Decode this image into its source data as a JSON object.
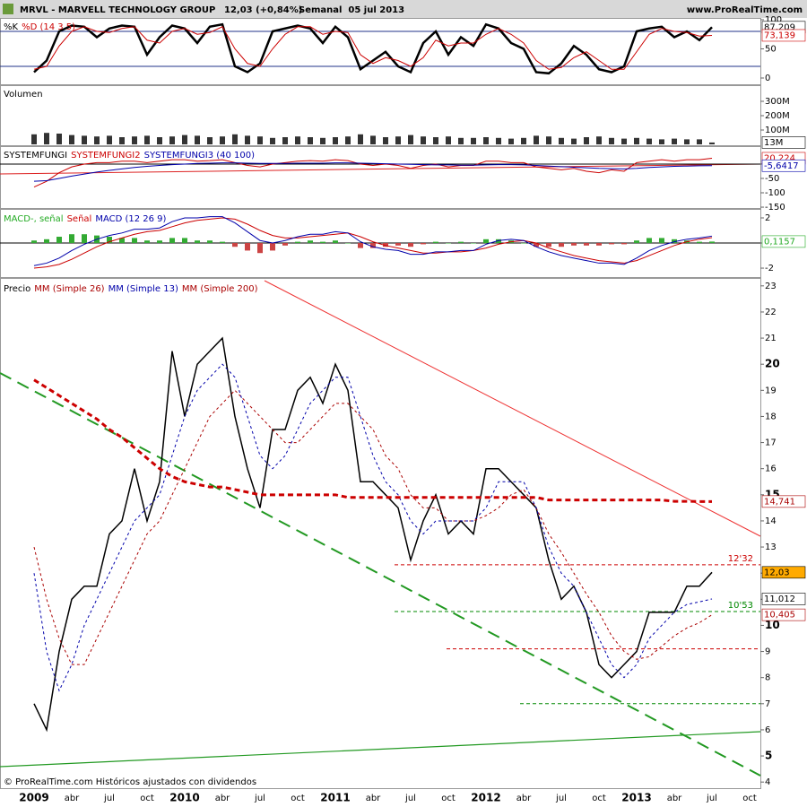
{
  "header": {
    "symbol": "MRVL - MARVELL TECHNOLOGY GROUP",
    "quote": "12,03 (+0,84%)",
    "period": "Semanal  05 jul 2013",
    "site": "www.ProRealTime.com"
  },
  "footer": "© ProRealTime.com Históricos ajustados con dividendos",
  "chart_data": [
    {
      "type": "line",
      "legend": [
        {
          "text": "%K",
          "color": "#000000"
        },
        {
          "text": "%D (14 3 5)",
          "color": "#cc0000"
        }
      ],
      "ylim": [
        0,
        100
      ],
      "yticks": [
        0,
        50,
        100
      ],
      "ref_lines": [
        80,
        20
      ],
      "series": [
        {
          "color": "#000000",
          "width": 2.5,
          "values": [
            10,
            30,
            80,
            90,
            88,
            70,
            85,
            90,
            88,
            40,
            70,
            90,
            85,
            60,
            88,
            92,
            20,
            10,
            25,
            80,
            85,
            90,
            85,
            60,
            88,
            70,
            15,
            30,
            45,
            20,
            10,
            60,
            80,
            40,
            70,
            55,
            92,
            85,
            60,
            50,
            10,
            8,
            25,
            55,
            40,
            15,
            10,
            20,
            80,
            85,
            88,
            70,
            80,
            65,
            87.209,
            null,
            null,
            null
          ]
        },
        {
          "color": "#cc0000",
          "width": 1,
          "values": [
            15,
            20,
            55,
            80,
            88,
            80,
            78,
            85,
            88,
            65,
            60,
            80,
            85,
            75,
            78,
            88,
            50,
            25,
            20,
            50,
            75,
            88,
            88,
            75,
            80,
            78,
            40,
            25,
            35,
            30,
            20,
            35,
            65,
            55,
            60,
            60,
            75,
            85,
            75,
            60,
            30,
            15,
            18,
            35,
            45,
            30,
            15,
            15,
            45,
            75,
            85,
            80,
            78,
            72,
            73.139,
            null,
            null,
            null
          ]
        }
      ],
      "last_labels": [
        {
          "value": 87.209,
          "label": "87,209",
          "color": "#000000"
        },
        {
          "value": 73.139,
          "label": "73,139",
          "color": "#cc0000"
        }
      ]
    },
    {
      "type": "bar",
      "legend": [
        {
          "text": "Volumen",
          "color": "#000000"
        }
      ],
      "ylim": [
        0,
        400
      ],
      "yticks": [
        {
          "value": 100,
          "label": "100M"
        },
        {
          "value": 200,
          "label": "200M"
        },
        {
          "value": 300,
          "label": "300M"
        }
      ],
      "series": [
        {
          "kind": "bar",
          "color": "#333333",
          "values": [
            70,
            80,
            75,
            65,
            60,
            55,
            60,
            50,
            55,
            60,
            50,
            55,
            65,
            60,
            50,
            55,
            70,
            60,
            55,
            45,
            50,
            55,
            50,
            45,
            50,
            55,
            70,
            60,
            50,
            55,
            65,
            55,
            50,
            55,
            45,
            45,
            50,
            45,
            40,
            45,
            60,
            55,
            45,
            40,
            50,
            55,
            45,
            40,
            45,
            40,
            35,
            40,
            35,
            35,
            13,
            null,
            null,
            null
          ]
        }
      ],
      "last_labels": [
        {
          "value": 13,
          "label": "13M",
          "color": "#000000"
        }
      ]
    },
    {
      "type": "line",
      "legend": [
        {
          "text": "SYSTEMFUNGI",
          "color": "#000000"
        },
        {
          "text": "SYSTEMFUNGI2",
          "color": "#cc0000"
        },
        {
          "text": "SYSTEMFUNGI3 (40 100)",
          "color": "#0000aa"
        }
      ],
      "ylim": [
        -153,
        56
      ],
      "yticks": [
        -150,
        -100,
        -50,
        0
      ],
      "ref_lines": [
        0
      ],
      "series": [
        {
          "color": "#cc0000",
          "width": 1,
          "values": [
            -80,
            -60,
            -30,
            -10,
            0,
            5,
            5,
            10,
            10,
            5,
            10,
            15,
            15,
            10,
            12,
            15,
            5,
            -5,
            -10,
            0,
            5,
            10,
            12,
            10,
            15,
            12,
            0,
            -5,
            0,
            -5,
            -15,
            -5,
            0,
            -10,
            -5,
            -5,
            10,
            10,
            5,
            5,
            -10,
            -15,
            -20,
            -15,
            -25,
            -30,
            -20,
            -25,
            5,
            10,
            15,
            10,
            15,
            15,
            20.224,
            null,
            null,
            null
          ]
        },
        {
          "color": "#0000aa",
          "width": 1,
          "values": [
            -60,
            -58,
            -50,
            -42,
            -35,
            -28,
            -22,
            -17,
            -12,
            -8,
            -5,
            -2,
            0,
            2,
            3,
            4,
            4,
            3,
            2,
            2,
            2,
            3,
            3,
            3,
            4,
            4,
            3,
            2,
            1,
            0,
            -1,
            -2,
            -3,
            -3,
            -4,
            -4,
            -3,
            -2,
            -2,
            -3,
            -5,
            -7,
            -9,
            -11,
            -13,
            -15,
            -16,
            -17,
            -15,
            -12,
            -10,
            -8,
            -7,
            -6,
            -5.6417,
            null,
            null,
            null
          ]
        }
      ],
      "last_labels": [
        {
          "value": 20.224,
          "label": "20,224",
          "color": "#cc0000"
        },
        {
          "value": -5.6417,
          "label": "-5,6417",
          "color": "#0000aa"
        }
      ]
    },
    {
      "type": "line",
      "legend": [
        {
          "text": "MACD-, señal",
          "color": "#22aa22"
        },
        {
          "text": "Señal",
          "color": "#cc0000"
        },
        {
          "text": "MACD (12 26 9)",
          "color": "#0000aa"
        }
      ],
      "ylim": [
        -2.64,
        2.5
      ],
      "yticks": [
        -2,
        0,
        2
      ],
      "ref_lines": [
        0
      ],
      "series": [
        {
          "kind": "bar",
          "color": "#33aa33",
          "negative_color": "#cc4444",
          "values": [
            0.2,
            0.3,
            0.5,
            0.7,
            0.7,
            0.6,
            0.5,
            0.4,
            0.4,
            0.2,
            0.2,
            0.4,
            0.4,
            0.2,
            0.2,
            0.1,
            -0.3,
            -0.6,
            -0.8,
            -0.6,
            -0.2,
            0.1,
            0.2,
            0.1,
            0.2,
            0,
            -0.4,
            -0.4,
            -0.3,
            -0.2,
            -0.3,
            -0.1,
            0.1,
            0,
            0.1,
            0,
            0.3,
            0.3,
            0.2,
            0,
            -0.3,
            -0.3,
            -0.3,
            -0.2,
            -0.2,
            -0.2,
            -0.1,
            -0.1,
            0.2,
            0.4,
            0.4,
            0.3,
            0.2,
            0.1,
            0.1157,
            null,
            null,
            null
          ]
        },
        {
          "color": "#cc0000",
          "width": 1,
          "values": [
            -2,
            -1.9,
            -1.7,
            -1.3,
            -0.8,
            -0.3,
            0.1,
            0.4,
            0.7,
            0.9,
            1,
            1.3,
            1.6,
            1.8,
            1.9,
            2,
            1.9,
            1.5,
            1,
            0.6,
            0.4,
            0.4,
            0.5,
            0.6,
            0.7,
            0.8,
            0.5,
            0.1,
            -0.2,
            -0.4,
            -0.6,
            -0.8,
            -0.8,
            -0.7,
            -0.7,
            -0.6,
            -0.4,
            -0.1,
            0.1,
            0.2,
            0,
            -0.4,
            -0.7,
            -1,
            -1.2,
            -1.4,
            -1.5,
            -1.6,
            -1.4,
            -1,
            -0.6,
            -0.2,
            0.1,
            0.3,
            0.43,
            null,
            null,
            null
          ]
        },
        {
          "color": "#0000aa",
          "width": 1,
          "values": [
            -1.8,
            -1.6,
            -1.2,
            -0.6,
            -0.1,
            0.3,
            0.6,
            0.8,
            1.1,
            1.1,
            1.2,
            1.7,
            2,
            2,
            2.1,
            2.1,
            1.6,
            0.9,
            0.2,
            0,
            0.2,
            0.5,
            0.7,
            0.7,
            0.9,
            0.8,
            0.1,
            -0.3,
            -0.5,
            -0.6,
            -0.9,
            -0.9,
            -0.7,
            -0.7,
            -0.6,
            -0.6,
            -0.1,
            0.2,
            0.3,
            0.2,
            -0.3,
            -0.7,
            -1,
            -1.2,
            -1.4,
            -1.6,
            -1.6,
            -1.7,
            -1.2,
            -0.6,
            -0.2,
            0.1,
            0.3,
            0.4,
            0.55,
            null,
            null,
            null
          ]
        }
      ],
      "last_labels": [
        {
          "value": 0.1157,
          "label": "0,1157",
          "color": "#22aa22"
        }
      ]
    },
    {
      "type": "line",
      "legend": [
        {
          "text": "Precio",
          "color": "#000000"
        },
        {
          "text": "MM (Simple 26)",
          "color": "#aa0000"
        },
        {
          "text": "MM (Simple 13)",
          "color": "#0000aa"
        },
        {
          "text": "MM (Simple 200)",
          "color": "#aa0000"
        }
      ],
      "categories": [
        "2009",
        null,
        null,
        "abr",
        null,
        null,
        "jul",
        null,
        null,
        "oct",
        null,
        null,
        "2010",
        null,
        null,
        "abr",
        null,
        null,
        "jul",
        null,
        null,
        "oct",
        null,
        null,
        "2011",
        null,
        null,
        "abr",
        null,
        null,
        "jul",
        null,
        null,
        "oct",
        null,
        null,
        "2012",
        null,
        null,
        "abr",
        null,
        null,
        "jul",
        null,
        null,
        "oct",
        null,
        null,
        "2013",
        null,
        null,
        "abr",
        null,
        null,
        "jul",
        null,
        null,
        "oct"
      ],
      "ylim": [
        3.8,
        23.2
      ],
      "yticks": [
        4,
        5,
        6,
        7,
        8,
        9,
        10,
        11,
        12,
        13,
        14,
        15,
        16,
        17,
        18,
        19,
        20,
        21,
        22,
        23
      ],
      "series": [
        {
          "color": "#000000",
          "width": 1.5,
          "values": [
            7,
            6,
            9,
            11,
            11.5,
            11.5,
            13.5,
            14,
            16,
            14,
            15.5,
            20.5,
            18,
            20,
            20.5,
            21,
            18,
            16,
            14.5,
            17.5,
            17.5,
            19,
            19.5,
            18.5,
            20,
            19,
            15.5,
            15.5,
            15,
            14.5,
            12.5,
            14,
            15,
            13.5,
            14,
            13.5,
            16,
            16,
            15.5,
            15,
            14.5,
            12.5,
            11,
            11.5,
            10.5,
            8.5,
            8,
            8.5,
            9,
            10.5,
            10.5,
            10.5,
            11.5,
            11.5,
            12.03,
            null,
            null,
            null
          ]
        },
        {
          "color": "#aa0000",
          "width": 1,
          "dash": "3,3",
          "values": [
            13,
            11,
            9.5,
            8.5,
            8.5,
            9.5,
            10.5,
            11.5,
            12.5,
            13.5,
            14,
            15,
            16,
            17,
            18,
            18.5,
            19,
            18.5,
            18,
            17.5,
            17,
            17,
            17.5,
            18,
            18.5,
            18.5,
            18,
            17.5,
            16.5,
            16,
            15,
            14.5,
            14.5,
            14,
            14,
            14,
            14.2,
            14.5,
            15,
            15.2,
            14.5,
            13.5,
            12.8,
            12,
            11.2,
            10.5,
            9.6,
            9,
            8.7,
            8.8,
            9.2,
            9.6,
            9.9,
            10.1,
            10.405,
            null,
            null,
            null
          ]
        },
        {
          "color": "#0000aa",
          "width": 1,
          "dash": "3,3",
          "values": [
            12,
            9,
            7.5,
            8.5,
            10,
            11,
            12,
            13,
            14,
            14.5,
            15,
            16.5,
            18,
            19,
            19.5,
            20,
            19.5,
            18,
            16.5,
            16,
            16.5,
            17.5,
            18.5,
            19,
            19.5,
            19.5,
            18,
            16.5,
            15.5,
            15,
            14,
            13.5,
            14,
            14,
            14,
            14,
            14.5,
            15.5,
            15.5,
            15.5,
            14.5,
            13,
            12,
            11.5,
            10.5,
            9.5,
            8.5,
            8,
            8.5,
            9.5,
            10,
            10.5,
            10.8,
            10.9,
            11.012,
            null,
            null,
            null
          ]
        },
        {
          "color": "#cc0000",
          "width": 3,
          "dash": "6,4",
          "values": [
            19.4,
            19.1,
            18.8,
            18.5,
            18.2,
            17.9,
            17.5,
            17.2,
            16.8,
            16.4,
            16,
            15.7,
            15.5,
            15.4,
            15.3,
            15.3,
            15.2,
            15.1,
            15,
            15,
            15,
            15,
            15,
            15,
            15,
            14.9,
            14.9,
            14.9,
            14.9,
            14.9,
            14.9,
            14.9,
            14.9,
            14.9,
            14.9,
            14.9,
            14.9,
            14.9,
            14.9,
            14.9,
            14.9,
            14.8,
            14.8,
            14.8,
            14.8,
            14.8,
            14.8,
            14.8,
            14.8,
            14.8,
            14.8,
            14.75,
            14.75,
            14.74,
            14.741,
            null,
            null,
            null
          ]
        }
      ],
      "levels": [
        {
          "value": 12.32,
          "label": "12'32",
          "color": "#cc0000"
        },
        {
          "value": 10.53,
          "label": "10'53",
          "color": "#008800"
        },
        {
          "value": 9.1,
          "color": "#cc0000"
        },
        {
          "value": 7,
          "color": "#008800"
        }
      ],
      "last_labels": [
        {
          "value": 14.741,
          "label": "14,741",
          "color": "#aa0000"
        },
        {
          "value": 12.03,
          "label": "12,03",
          "color": "#000000",
          "bg": "#ffaa00"
        },
        {
          "value": 11.012,
          "label": "11,012",
          "color": "#000000"
        },
        {
          "value": 10.405,
          "label": "10,405",
          "color": "#aa0000"
        }
      ]
    }
  ]
}
